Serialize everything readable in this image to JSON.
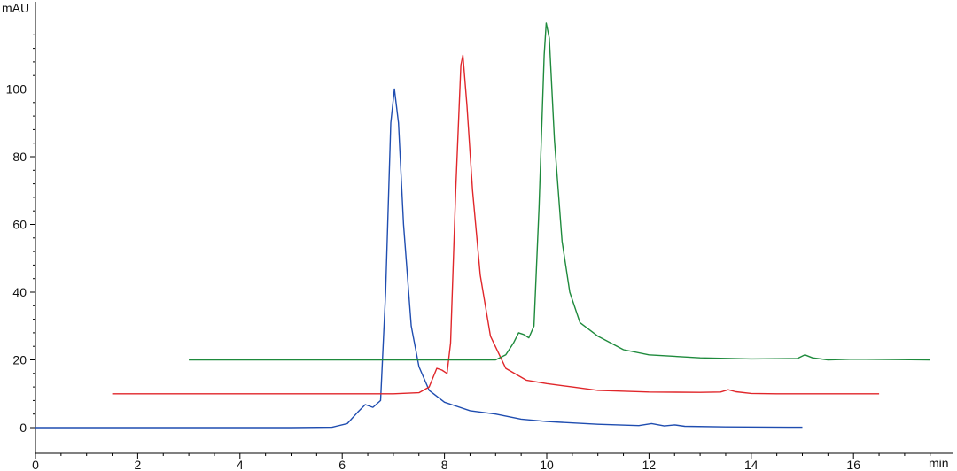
{
  "chart_data": {
    "type": "line",
    "title": "",
    "xlabel": "min",
    "ylabel": "mAU",
    "xlim": [
      0,
      17.5
    ],
    "ylim": [
      -1,
      120
    ],
    "x_ticks": [
      0,
      2,
      4,
      6,
      8,
      10,
      12,
      14,
      16
    ],
    "y_ticks": [
      0,
      20,
      40,
      60,
      80,
      100
    ],
    "grid": false,
    "series": [
      {
        "color": "#1f4db0",
        "points": [
          [
            0,
            0
          ],
          [
            2,
            0
          ],
          [
            4,
            0
          ],
          [
            5,
            0
          ],
          [
            5.8,
            0.1
          ],
          [
            6.1,
            1.2
          ],
          [
            6.3,
            4.5
          ],
          [
            6.45,
            6.8
          ],
          [
            6.6,
            6
          ],
          [
            6.75,
            8
          ],
          [
            6.85,
            40
          ],
          [
            6.95,
            90
          ],
          [
            7.02,
            100
          ],
          [
            7.1,
            90
          ],
          [
            7.2,
            60
          ],
          [
            7.35,
            30
          ],
          [
            7.5,
            18
          ],
          [
            7.7,
            11
          ],
          [
            8,
            7.5
          ],
          [
            8.5,
            5
          ],
          [
            9,
            4
          ],
          [
            9.5,
            2.5
          ],
          [
            10,
            1.8
          ],
          [
            11,
            1
          ],
          [
            11.8,
            0.6
          ],
          [
            12.05,
            1.2
          ],
          [
            12.3,
            0.5
          ],
          [
            12.5,
            0.8
          ],
          [
            12.7,
            0.4
          ],
          [
            13.5,
            0.2
          ],
          [
            15,
            0.1
          ]
        ]
      },
      {
        "color": "#e0262a",
        "points": [
          [
            1.5,
            10
          ],
          [
            4,
            10
          ],
          [
            7,
            10
          ],
          [
            7.5,
            10.3
          ],
          [
            7.7,
            12
          ],
          [
            7.85,
            17.5
          ],
          [
            7.95,
            17
          ],
          [
            8.05,
            16
          ],
          [
            8.12,
            25
          ],
          [
            8.22,
            70
          ],
          [
            8.32,
            107
          ],
          [
            8.36,
            110
          ],
          [
            8.44,
            95
          ],
          [
            8.55,
            70
          ],
          [
            8.7,
            45
          ],
          [
            8.9,
            27
          ],
          [
            9.2,
            17.5
          ],
          [
            9.6,
            14
          ],
          [
            10,
            13
          ],
          [
            10.5,
            12
          ],
          [
            11,
            11
          ],
          [
            12,
            10.5
          ],
          [
            13,
            10.4
          ],
          [
            13.4,
            10.5
          ],
          [
            13.55,
            11.2
          ],
          [
            13.7,
            10.6
          ],
          [
            14,
            10.1
          ],
          [
            14.5,
            10
          ],
          [
            16.5,
            10
          ]
        ]
      },
      {
        "color": "#1e8a3c",
        "points": [
          [
            3,
            20
          ],
          [
            6,
            20
          ],
          [
            9,
            20
          ],
          [
            9.2,
            21.5
          ],
          [
            9.35,
            25
          ],
          [
            9.45,
            28
          ],
          [
            9.55,
            27.5
          ],
          [
            9.65,
            26.5
          ],
          [
            9.75,
            30
          ],
          [
            9.85,
            65
          ],
          [
            9.95,
            110
          ],
          [
            9.99,
            119.5
          ],
          [
            10.05,
            115
          ],
          [
            10.15,
            85
          ],
          [
            10.3,
            55
          ],
          [
            10.45,
            40
          ],
          [
            10.65,
            31
          ],
          [
            11,
            27
          ],
          [
            11.5,
            23
          ],
          [
            12,
            21.5
          ],
          [
            13,
            20.6
          ],
          [
            14,
            20.3
          ],
          [
            14.9,
            20.4
          ],
          [
            15.05,
            21.5
          ],
          [
            15.2,
            20.6
          ],
          [
            15.5,
            20
          ],
          [
            16,
            20.2
          ],
          [
            17.5,
            20
          ]
        ]
      }
    ]
  }
}
